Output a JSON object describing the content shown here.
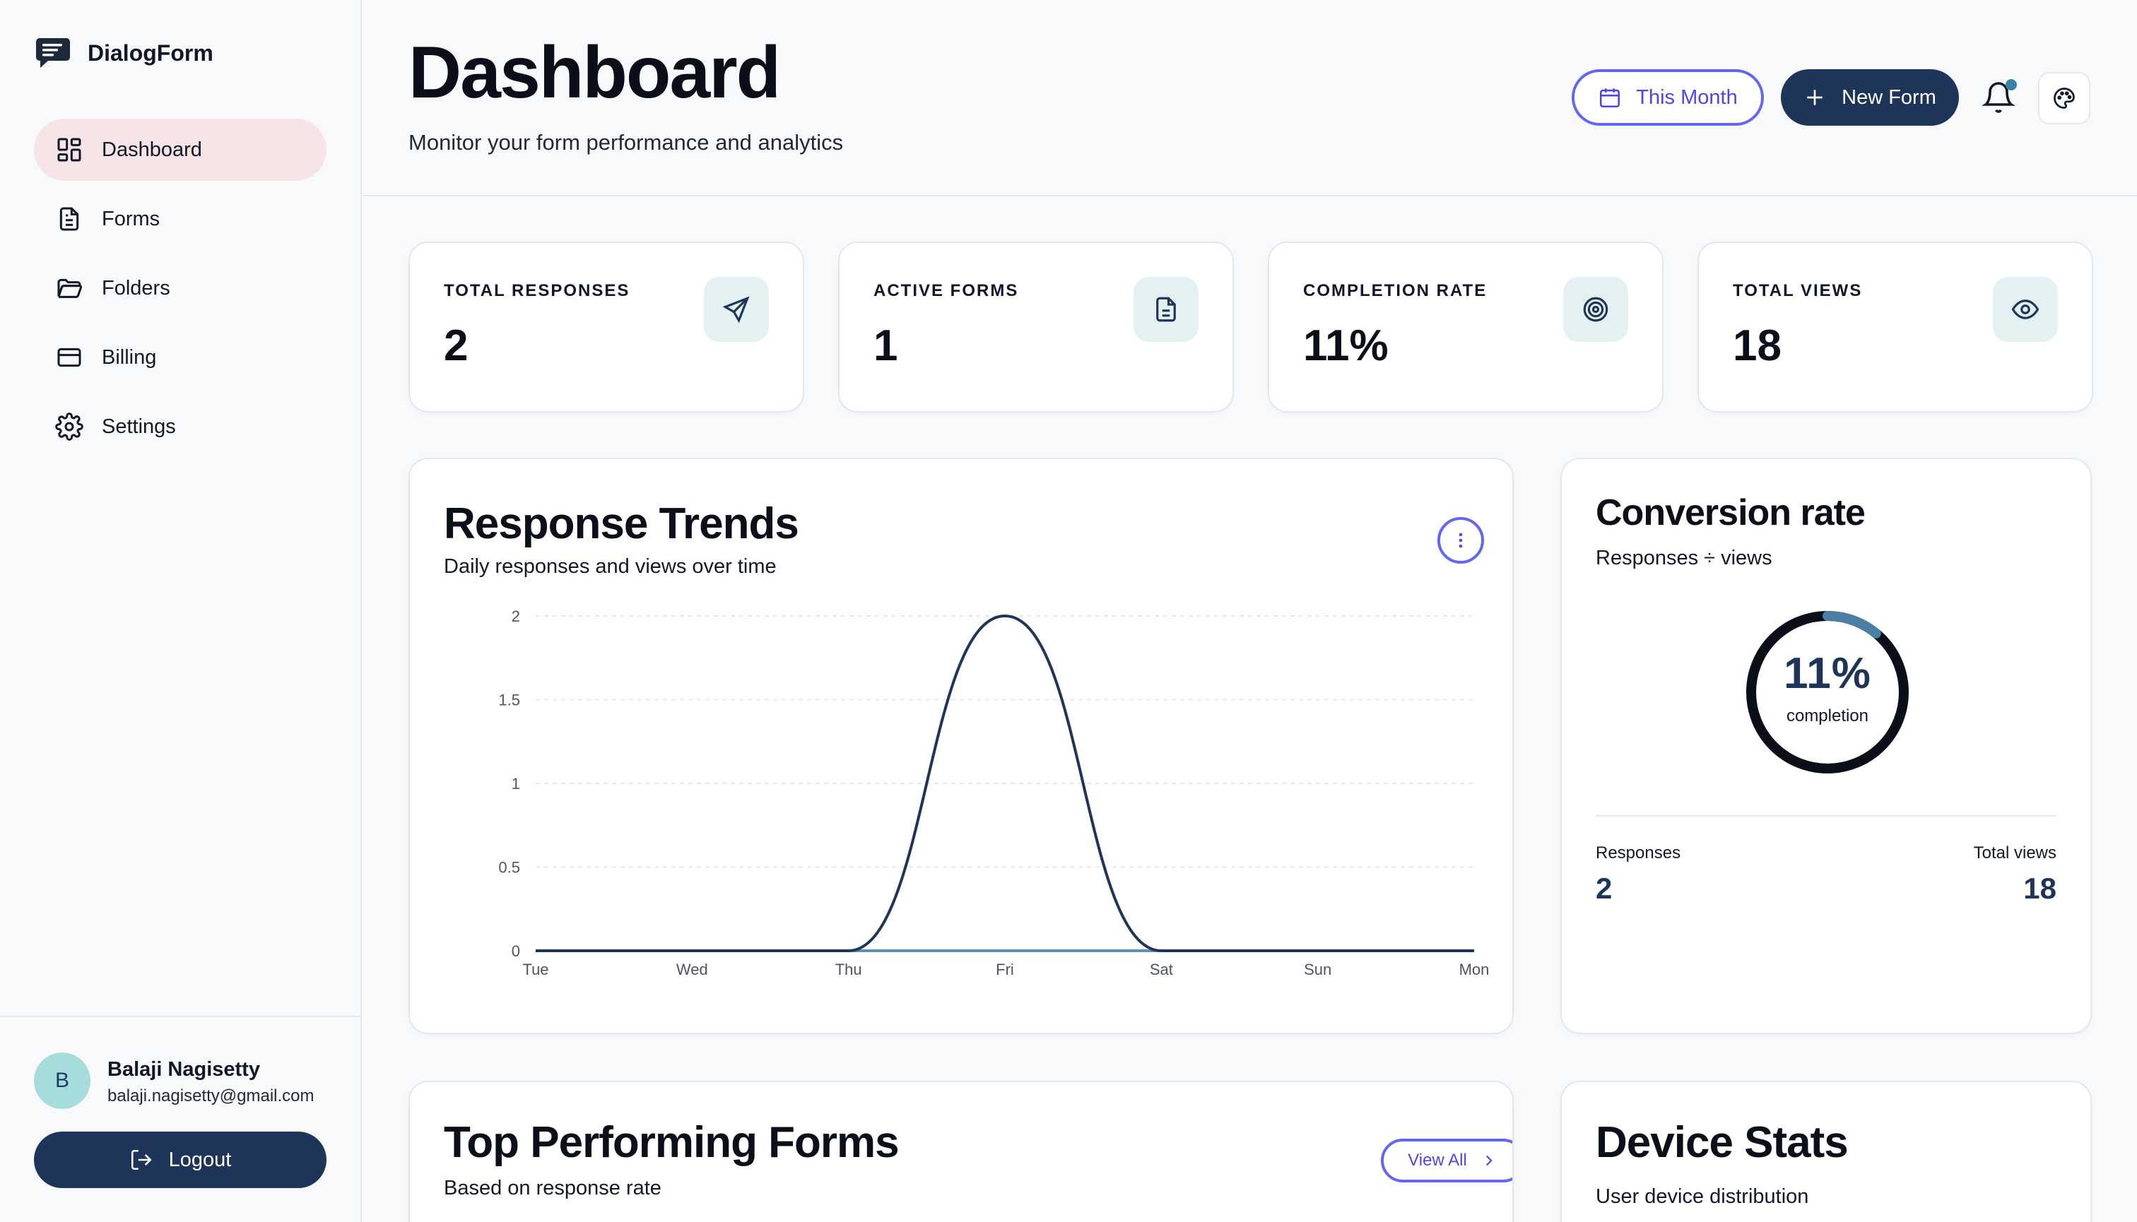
{
  "app": {
    "name": "DialogForm"
  },
  "sidebar": {
    "items": [
      {
        "label": "Dashboard",
        "icon": "dashboard-grid-icon",
        "active": true
      },
      {
        "label": "Forms",
        "icon": "document-icon"
      },
      {
        "label": "Folders",
        "icon": "folder-icon"
      },
      {
        "label": "Billing",
        "icon": "credit-card-icon"
      },
      {
        "label": "Settings",
        "icon": "gear-icon"
      }
    ]
  },
  "user": {
    "initial": "B",
    "name": "Balaji Nagisetty",
    "email": "balaji.nagisetty@gmail.com",
    "logout_label": "Logout"
  },
  "header": {
    "title": "Dashboard",
    "subtitle": "Monitor your form performance and analytics",
    "period_label": "This Month",
    "new_form_label": "New Form"
  },
  "stats": [
    {
      "label": "TOTAL RESPONSES",
      "value": "2",
      "icon": "send-icon"
    },
    {
      "label": "ACTIVE FORMS",
      "value": "1",
      "icon": "document-icon"
    },
    {
      "label": "COMPLETION RATE",
      "value": "11%",
      "icon": "target-icon"
    },
    {
      "label": "TOTAL VIEWS",
      "value": "18",
      "icon": "eye-icon"
    }
  ],
  "trends": {
    "title": "Response Trends",
    "subtitle": "Daily responses and views over time"
  },
  "chart_data": {
    "type": "line",
    "x": [
      "Tue",
      "Wed",
      "Thu",
      "Fri",
      "Sat",
      "Sun",
      "Mon"
    ],
    "series": [
      {
        "values": [
          0,
          0,
          0,
          2,
          0,
          0,
          0
        ],
        "color": "#1e3458"
      },
      {
        "values": [
          0,
          0,
          0,
          0,
          0,
          0,
          0
        ],
        "color": "#5b8fb0"
      }
    ],
    "yticks": [
      "0",
      "0.5",
      "1",
      "1.5",
      "2"
    ],
    "ylim": [
      0,
      2
    ],
    "grid": true
  },
  "conversion": {
    "title": "Conversion rate",
    "subtitle": "Responses ÷ views",
    "value": "11%",
    "fraction": 0.11,
    "caption": "completion",
    "responses_label": "Responses",
    "responses_value": "2",
    "views_label": "Total views",
    "views_value": "18"
  },
  "top_forms": {
    "title": "Top Performing Forms",
    "subtitle": "Based on response rate",
    "view_all_label": "View All"
  },
  "devices": {
    "title": "Device Stats",
    "subtitle": "User device distribution"
  }
}
